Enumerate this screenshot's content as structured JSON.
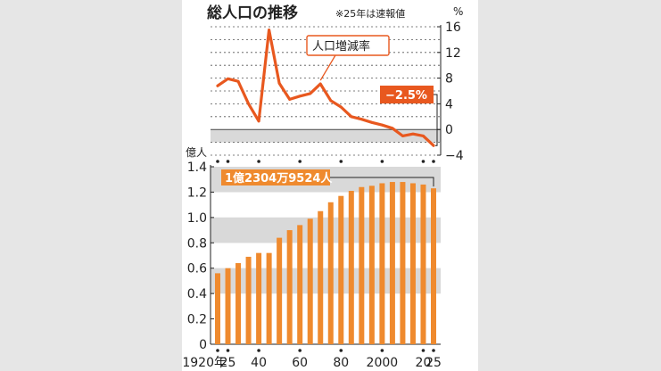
{
  "title": "総人口の推移",
  "note": "※25年は速報値",
  "colors": {
    "accent": "#e8581f",
    "bar": "#ef8a2e",
    "band": "#d9d9d9",
    "bg": "#e6e6e6"
  },
  "chart_data": [
    {
      "type": "line",
      "name": "population-growth-rate",
      "ylabel": "%",
      "ylim": [
        -4,
        16
      ],
      "yticks": [
        16,
        12,
        8,
        4,
        0,
        -4
      ],
      "ytick_labels": [
        "16",
        "12",
        "8",
        "4",
        "0",
        "−4"
      ],
      "series": [
        {
          "name": "人口増減率",
          "x": [
            1920,
            1925,
            1930,
            1935,
            1940,
            1945,
            1950,
            1955,
            1960,
            1965,
            1970,
            1975,
            1980,
            1985,
            1990,
            1995,
            2000,
            2005,
            2010,
            2015,
            2020,
            2025
          ],
          "values": [
            6.8,
            7.9,
            7.5,
            4.0,
            1.3,
            15.5,
            7.2,
            4.7,
            5.2,
            5.6,
            7.1,
            4.5,
            3.5,
            2.0,
            1.6,
            1.1,
            0.7,
            0.2,
            -1.0,
            -0.7,
            -1.0,
            -2.5
          ]
        }
      ],
      "annotations": [
        {
          "text": "人口増減率"
        },
        {
          "text": "−2.5%"
        }
      ]
    },
    {
      "type": "bar",
      "name": "total-population",
      "ylabel": "億人",
      "ylim": [
        0,
        1.4
      ],
      "yticks": [
        0,
        0.2,
        0.4,
        0.6,
        0.8,
        1.0,
        1.2,
        1.4
      ],
      "ytick_labels": [
        "0",
        "0.2",
        "0.4",
        "0.6",
        "0.8",
        "1.0",
        "1.2",
        "1.4"
      ],
      "x": [
        1920,
        1925,
        1930,
        1935,
        1940,
        1945,
        1950,
        1955,
        1960,
        1965,
        1970,
        1975,
        1980,
        1985,
        1990,
        1995,
        2000,
        2005,
        2010,
        2015,
        2020,
        2025
      ],
      "values": [
        0.56,
        0.6,
        0.64,
        0.69,
        0.72,
        0.72,
        0.84,
        0.9,
        0.94,
        0.99,
        1.05,
        1.12,
        1.17,
        1.21,
        1.24,
        1.25,
        1.27,
        1.28,
        1.28,
        1.27,
        1.26,
        1.23
      ],
      "xtick_labels": [
        {
          "x": 1920,
          "label": "1920年"
        },
        {
          "x": 1925,
          "label": "25"
        },
        {
          "x": 1940,
          "label": "40"
        },
        {
          "x": 1960,
          "label": "60"
        },
        {
          "x": 1980,
          "label": "80"
        },
        {
          "x": 2000,
          "label": "2000"
        },
        {
          "x": 2020,
          "label": "20"
        },
        {
          "x": 2025,
          "label": "25"
        }
      ],
      "annotations": [
        {
          "text": "1億2304万9524人"
        }
      ]
    }
  ]
}
